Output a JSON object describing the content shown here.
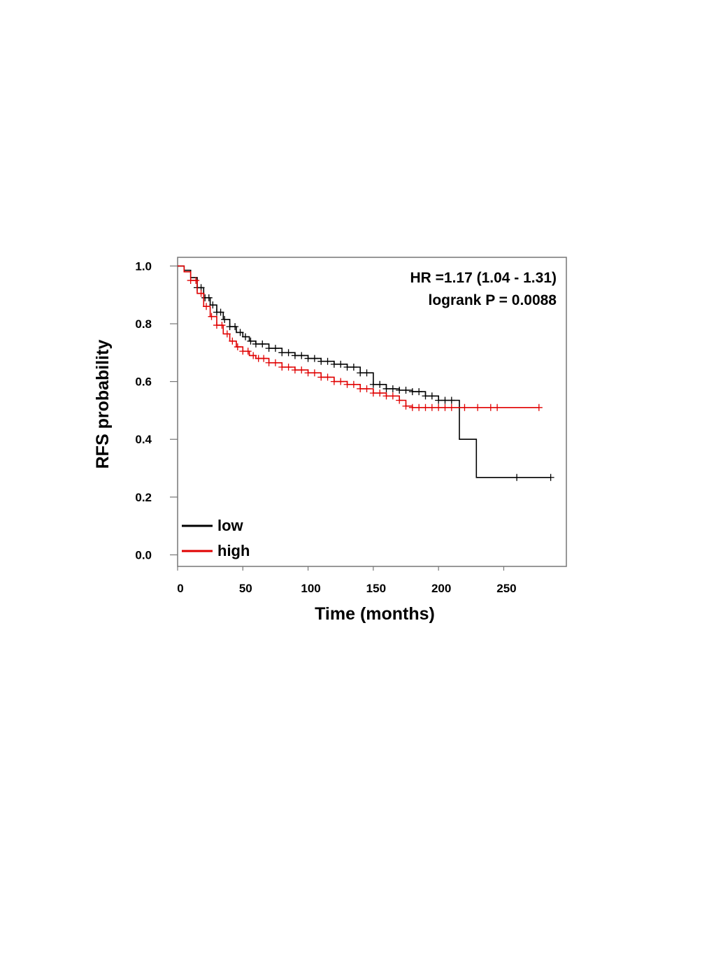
{
  "chart_data": {
    "type": "line",
    "title": "",
    "xlabel": "Time (months)",
    "ylabel": "RFS probability",
    "xlim": [
      0,
      298
    ],
    "ylim": [
      -0.04,
      1.03
    ],
    "x_ticks": [
      0,
      50,
      100,
      150,
      200,
      250
    ],
    "y_ticks": [
      0.0,
      0.2,
      0.4,
      0.6,
      0.8,
      1.0
    ],
    "x_tick_labels": [
      "0",
      "50",
      "100",
      "150",
      "200",
      "250"
    ],
    "y_tick_labels": [
      "0.0",
      "0.2",
      "0.4",
      "0.6",
      "0.8",
      "1.0"
    ],
    "grid": false,
    "legend_position": "bottom-left",
    "annotations": [
      "HR =1.17 (1.04 - 1.31)",
      "logrank  P = 0.0088"
    ],
    "series": [
      {
        "name": "low",
        "color": "#000000",
        "x": [
          0,
          5,
          10,
          15,
          20,
          25,
          30,
          35,
          40,
          45,
          50,
          55,
          60,
          70,
          80,
          90,
          100,
          110,
          120,
          130,
          140,
          150,
          160,
          170,
          180,
          190,
          200,
          210,
          216,
          216,
          229,
          229,
          286
        ],
        "y": [
          1.0,
          0.985,
          0.96,
          0.925,
          0.89,
          0.865,
          0.84,
          0.815,
          0.79,
          0.77,
          0.755,
          0.74,
          0.73,
          0.715,
          0.7,
          0.69,
          0.68,
          0.67,
          0.66,
          0.65,
          0.63,
          0.59,
          0.575,
          0.57,
          0.565,
          0.55,
          0.535,
          0.535,
          0.535,
          0.4,
          0.4,
          0.268,
          0.268
        ],
        "censor_x": [
          15,
          18,
          21,
          24,
          27,
          30,
          33,
          36,
          40,
          44,
          48,
          52,
          56,
          60,
          65,
          70,
          75,
          80,
          85,
          90,
          95,
          100,
          105,
          110,
          115,
          120,
          125,
          130,
          135,
          140,
          145,
          150,
          155,
          160,
          165,
          170,
          175,
          180,
          185,
          190,
          195,
          200,
          205,
          210,
          260,
          286
        ]
      },
      {
        "name": "high",
        "color": "#e00000",
        "x": [
          0,
          5,
          10,
          15,
          20,
          25,
          30,
          35,
          40,
          45,
          50,
          55,
          60,
          70,
          80,
          90,
          100,
          110,
          120,
          130,
          140,
          150,
          160,
          170,
          175,
          180,
          200,
          220,
          250,
          277
        ],
        "y": [
          1.0,
          0.98,
          0.95,
          0.905,
          0.86,
          0.825,
          0.795,
          0.765,
          0.74,
          0.72,
          0.705,
          0.69,
          0.68,
          0.665,
          0.65,
          0.64,
          0.63,
          0.615,
          0.6,
          0.59,
          0.575,
          0.56,
          0.55,
          0.535,
          0.515,
          0.51,
          0.51,
          0.51,
          0.51,
          0.51
        ],
        "censor_x": [
          10,
          14,
          18,
          22,
          26,
          30,
          34,
          38,
          42,
          46,
          50,
          54,
          58,
          62,
          66,
          70,
          75,
          80,
          85,
          90,
          95,
          100,
          105,
          110,
          115,
          120,
          125,
          130,
          135,
          140,
          145,
          150,
          155,
          160,
          165,
          170,
          175,
          180,
          185,
          190,
          195,
          200,
          205,
          210,
          220,
          230,
          240,
          245,
          277
        ]
      }
    ]
  }
}
